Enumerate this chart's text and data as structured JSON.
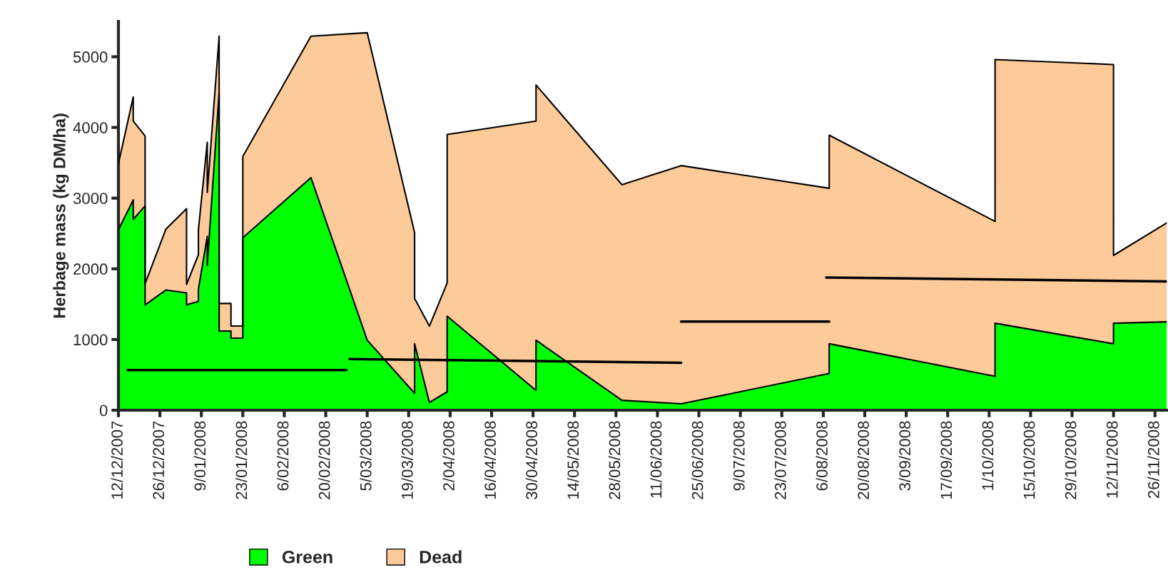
{
  "chart_data": {
    "type": "area",
    "stacked": true,
    "ylabel": "Herbage mass (kg DM/ha)",
    "x": [
      "2007-12-12",
      "2007-12-17",
      "2007-12-17",
      "2007-12-21",
      "2007-12-21",
      "2007-12-28",
      "2008-01-04",
      "2008-01-04",
      "2008-01-08",
      "2008-01-08",
      "2008-01-11",
      "2008-01-11",
      "2008-01-15",
      "2008-01-15",
      "2008-01-19",
      "2008-01-19",
      "2008-01-23",
      "2008-01-23",
      "2008-02-15",
      "2008-03-05",
      "2008-03-21",
      "2008-03-21",
      "2008-03-26",
      "2008-04-01",
      "2008-04-01",
      "2008-05-01",
      "2008-05-01",
      "2008-05-30",
      "2008-06-19",
      "2008-08-08",
      "2008-08-08",
      "2008-10-03",
      "2008-10-03",
      "2008-11-12",
      "2008-11-12",
      "2008-11-30"
    ],
    "series": [
      {
        "name": "Green",
        "color": "#00ff00",
        "values": [
          2550,
          2975,
          2700,
          2890,
          1490,
          1700,
          1660,
          1490,
          1540,
          1710,
          2460,
          2050,
          4500,
          1120,
          1120,
          1020,
          1020,
          2440,
          3290,
          990,
          240,
          940,
          110,
          260,
          1330,
          280,
          990,
          140,
          90,
          520,
          940,
          480,
          1230,
          940,
          1230,
          1250
        ]
      },
      {
        "name": "Dead",
        "color": "#fdca99",
        "values": [
          940,
          1455,
          1390,
          990,
          300,
          860,
          1190,
          290,
          660,
          840,
          1330,
          1030,
          790,
          390,
          390,
          170,
          170,
          1150,
          2000,
          4350,
          2270,
          640,
          1080,
          1540,
          2570,
          3810,
          3610,
          3050,
          3370,
          2620,
          2950,
          2190,
          3730,
          3950,
          960,
          1400
        ]
      },
      {
        "type": "line",
        "color": "#000000",
        "x": [
          "2007-12-15",
          "2008-02-27"
        ],
        "values": [
          567,
          567
        ]
      },
      {
        "type": "line",
        "color": "#000000",
        "x": [
          "2008-02-28",
          "2008-06-19"
        ],
        "values": [
          724,
          671
        ]
      },
      {
        "type": "line",
        "color": "#000000",
        "x": [
          "2008-06-19",
          "2008-08-08"
        ],
        "values": [
          1255,
          1255
        ]
      },
      {
        "type": "line",
        "color": "#000000",
        "x": [
          "2008-08-07",
          "2008-11-30"
        ],
        "values": [
          1877,
          1821
        ]
      }
    ],
    "xlim": [
      "2007-12-12",
      "2008-11-30"
    ],
    "xticks": [
      {
        "value": "2007-12-12",
        "label": "12/12/2007"
      },
      {
        "value": "2007-12-26",
        "label": "26/12/2007"
      },
      {
        "value": "2008-01-09",
        "label": "9/01/2008"
      },
      {
        "value": "2008-01-23",
        "label": "23/01/2008"
      },
      {
        "value": "2008-02-06",
        "label": "6/02/2008"
      },
      {
        "value": "2008-02-20",
        "label": "20/02/2008"
      },
      {
        "value": "2008-03-05",
        "label": "5/03/2008"
      },
      {
        "value": "2008-03-19",
        "label": "19/03/2008"
      },
      {
        "value": "2008-04-02",
        "label": "2/04/2008"
      },
      {
        "value": "2008-04-16",
        "label": "16/04/2008"
      },
      {
        "value": "2008-04-30",
        "label": "30/04/2008"
      },
      {
        "value": "2008-05-14",
        "label": "14/05/2008"
      },
      {
        "value": "2008-05-28",
        "label": "28/05/2008"
      },
      {
        "value": "2008-06-11",
        "label": "11/06/2008"
      },
      {
        "value": "2008-06-25",
        "label": "25/06/2008"
      },
      {
        "value": "2008-07-09",
        "label": "9/07/2008"
      },
      {
        "value": "2008-07-23",
        "label": "23/07/2008"
      },
      {
        "value": "2008-08-06",
        "label": "6/08/2008"
      },
      {
        "value": "2008-08-20",
        "label": "20/08/2008"
      },
      {
        "value": "2008-09-03",
        "label": "3/09/2008"
      },
      {
        "value": "2008-09-17",
        "label": "17/09/2008"
      },
      {
        "value": "2008-10-01",
        "label": "1/10/2008"
      },
      {
        "value": "2008-10-15",
        "label": "15/10/2008"
      },
      {
        "value": "2008-10-29",
        "label": "29/10/2008"
      },
      {
        "value": "2008-11-12",
        "label": "12/11/2008"
      },
      {
        "value": "2008-11-26",
        "label": "26/11/2008"
      }
    ],
    "ylim": [
      0,
      5500
    ],
    "yticks": [
      0,
      1000,
      2000,
      3000,
      4000,
      5000
    ],
    "grid": false,
    "legend": "bottom"
  }
}
